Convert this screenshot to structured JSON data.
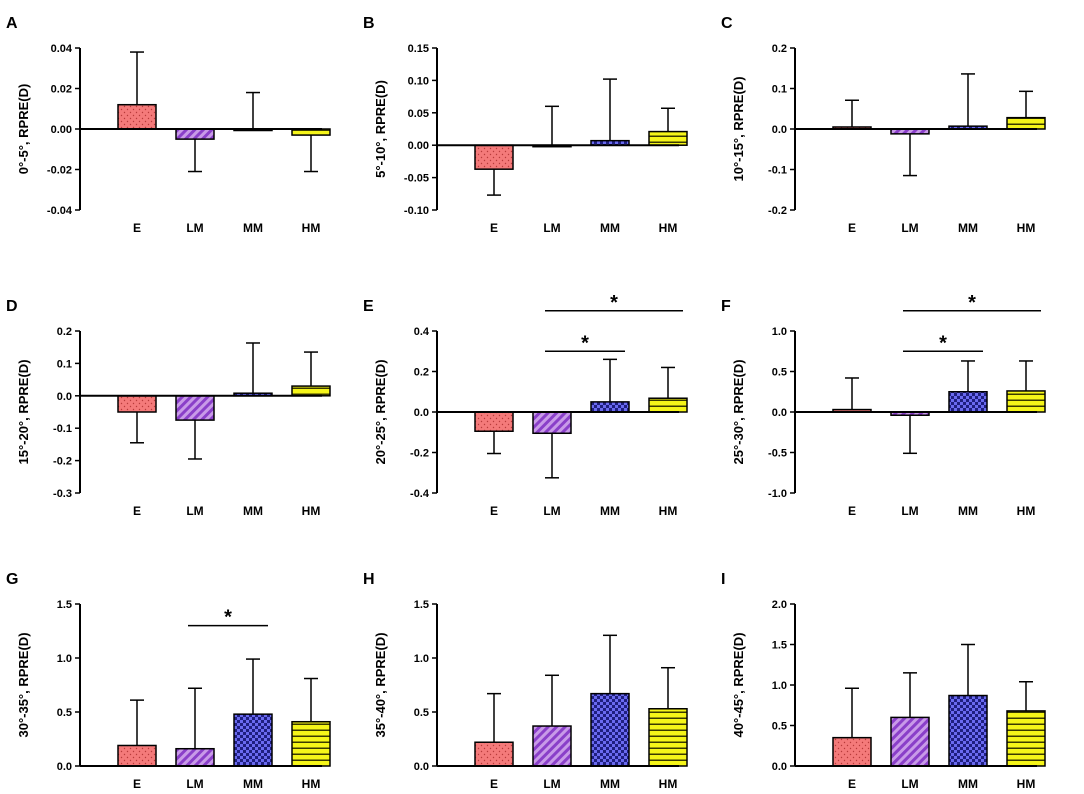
{
  "figure": {
    "categories": [
      "E",
      "LM",
      "MM",
      "HM"
    ],
    "series_colors": [
      "#f47a7a",
      "#a25ad6",
      "#4a4adb",
      "#f5f519"
    ],
    "series_patterns": [
      "dots",
      "diagonal-stripes",
      "checker",
      "horizontal-stripes"
    ]
  },
  "chart_data": [
    {
      "type": "bar",
      "panel": "A",
      "ylabel": "0°-5°, RPRE(D)",
      "xlabel": "",
      "categories": [
        "E",
        "LM",
        "MM",
        "HM"
      ],
      "values": [
        0.012,
        -0.005,
        0.0,
        -0.003
      ],
      "errors": [
        0.026,
        0.016,
        0.018,
        0.018
      ],
      "ylim": [
        -0.04,
        0.04
      ],
      "yticks": [
        -0.04,
        -0.02,
        0.0,
        0.02,
        0.04
      ],
      "ytick_labels": [
        "-0.04",
        "-0.02",
        "0.00",
        "0.02",
        "0.04"
      ],
      "significance": []
    },
    {
      "type": "bar",
      "panel": "B",
      "ylabel": "5°-10°, RPRE(D)",
      "xlabel": "",
      "categories": [
        "E",
        "LM",
        "MM",
        "HM"
      ],
      "values": [
        -0.037,
        0.0,
        0.007,
        0.021
      ],
      "errors": [
        0.04,
        0.06,
        0.095,
        0.036
      ],
      "ylim": [
        -0.1,
        0.15
      ],
      "yticks": [
        -0.1,
        -0.05,
        0.0,
        0.05,
        0.1,
        0.15
      ],
      "ytick_labels": [
        "-0.10",
        "-0.05",
        "0.00",
        "0.05",
        "0.10",
        "0.15"
      ],
      "significance": []
    },
    {
      "type": "bar",
      "panel": "C",
      "ylabel": "10°-15°, RPRE(D)",
      "xlabel": "",
      "categories": [
        "E",
        "LM",
        "MM",
        "HM"
      ],
      "values": [
        0.005,
        -0.012,
        0.007,
        0.028
      ],
      "errors": [
        0.066,
        0.103,
        0.129,
        0.065
      ],
      "ylim": [
        -0.2,
        0.2
      ],
      "yticks": [
        -0.2,
        -0.1,
        0.0,
        0.1,
        0.2
      ],
      "ytick_labels": [
        "-0.2",
        "-0.1",
        "0.0",
        "0.1",
        "0.2"
      ],
      "significance": []
    },
    {
      "type": "bar",
      "panel": "D",
      "ylabel": "15°-20°, RPRE(D)",
      "xlabel": "",
      "categories": [
        "E",
        "LM",
        "MM",
        "HM"
      ],
      "values": [
        -0.05,
        -0.075,
        0.008,
        0.03
      ],
      "errors": [
        0.095,
        0.12,
        0.155,
        0.105
      ],
      "ylim": [
        -0.3,
        0.2
      ],
      "yticks": [
        -0.3,
        -0.2,
        -0.1,
        0.0,
        0.1,
        0.2
      ],
      "ytick_labels": [
        "-0.3",
        "-0.2",
        "-0.1",
        "0.0",
        "0.1",
        "0.2"
      ],
      "significance": []
    },
    {
      "type": "bar",
      "panel": "E",
      "ylabel": "20°-25°, RPRE(D)",
      "xlabel": "",
      "categories": [
        "E",
        "LM",
        "MM",
        "HM"
      ],
      "values": [
        -0.095,
        -0.105,
        0.05,
        0.068
      ],
      "errors": [
        0.11,
        0.22,
        0.21,
        0.152
      ],
      "ylim": [
        -0.4,
        0.4
      ],
      "yticks": [
        -0.4,
        -0.2,
        0.0,
        0.2,
        0.4
      ],
      "ytick_labels": [
        "-0.4",
        "-0.2",
        "0.0",
        "0.2",
        "0.4"
      ],
      "significance": [
        {
          "from": 1,
          "to": 2,
          "level": 0.3,
          "label": "*"
        },
        {
          "from": 1,
          "to": 3,
          "level": 0.5,
          "label": "*"
        }
      ]
    },
    {
      "type": "bar",
      "panel": "F",
      "ylabel": "25°-30°, RPRE(D)",
      "xlabel": "",
      "categories": [
        "E",
        "LM",
        "MM",
        "HM"
      ],
      "values": [
        0.03,
        -0.04,
        0.25,
        0.26
      ],
      "errors": [
        0.39,
        0.47,
        0.38,
        0.37
      ],
      "ylim": [
        -1.0,
        1.0
      ],
      "yticks": [
        -1.0,
        -0.5,
        0.0,
        0.5,
        1.0
      ],
      "ytick_labels": [
        "-1.0",
        "-0.5",
        "0.0",
        "0.5",
        "1.0"
      ],
      "significance": [
        {
          "from": 1,
          "to": 2,
          "level": 0.75,
          "label": "*"
        },
        {
          "from": 1,
          "to": 3,
          "level": 1.25,
          "label": "*"
        }
      ]
    },
    {
      "type": "bar",
      "panel": "G",
      "ylabel": "30°-35°, RPRE(D)",
      "xlabel": "",
      "categories": [
        "E",
        "LM",
        "MM",
        "HM"
      ],
      "values": [
        0.19,
        0.16,
        0.48,
        0.41
      ],
      "errors": [
        0.42,
        0.56,
        0.51,
        0.4
      ],
      "ylim": [
        0.0,
        1.5
      ],
      "yticks": [
        0.0,
        0.5,
        1.0,
        1.5
      ],
      "ytick_labels": [
        "0.0",
        "0.5",
        "1.0",
        "1.5"
      ],
      "significance": [
        {
          "from": 1,
          "to": 2,
          "level": 1.3,
          "label": "*"
        }
      ]
    },
    {
      "type": "bar",
      "panel": "H",
      "ylabel": "35°-40°, RPRE(D)",
      "xlabel": "",
      "categories": [
        "E",
        "LM",
        "MM",
        "HM"
      ],
      "values": [
        0.22,
        0.37,
        0.67,
        0.53
      ],
      "errors": [
        0.45,
        0.47,
        0.54,
        0.38
      ],
      "ylim": [
        0.0,
        1.5
      ],
      "yticks": [
        0.0,
        0.5,
        1.0,
        1.5
      ],
      "ytick_labels": [
        "0.0",
        "0.5",
        "1.0",
        "1.5"
      ],
      "significance": []
    },
    {
      "type": "bar",
      "panel": "I",
      "ylabel": "40°-45°, RPRE(D)",
      "xlabel": "",
      "categories": [
        "E",
        "LM",
        "MM",
        "HM"
      ],
      "values": [
        0.35,
        0.6,
        0.87,
        0.68
      ],
      "errors": [
        0.61,
        0.55,
        0.63,
        0.36
      ],
      "ylim": [
        0.0,
        2.0
      ],
      "yticks": [
        0.0,
        0.5,
        1.0,
        1.5,
        2.0
      ],
      "ytick_labels": [
        "0.0",
        "0.5",
        "1.0",
        "1.5",
        "2.0"
      ],
      "significance": []
    }
  ]
}
